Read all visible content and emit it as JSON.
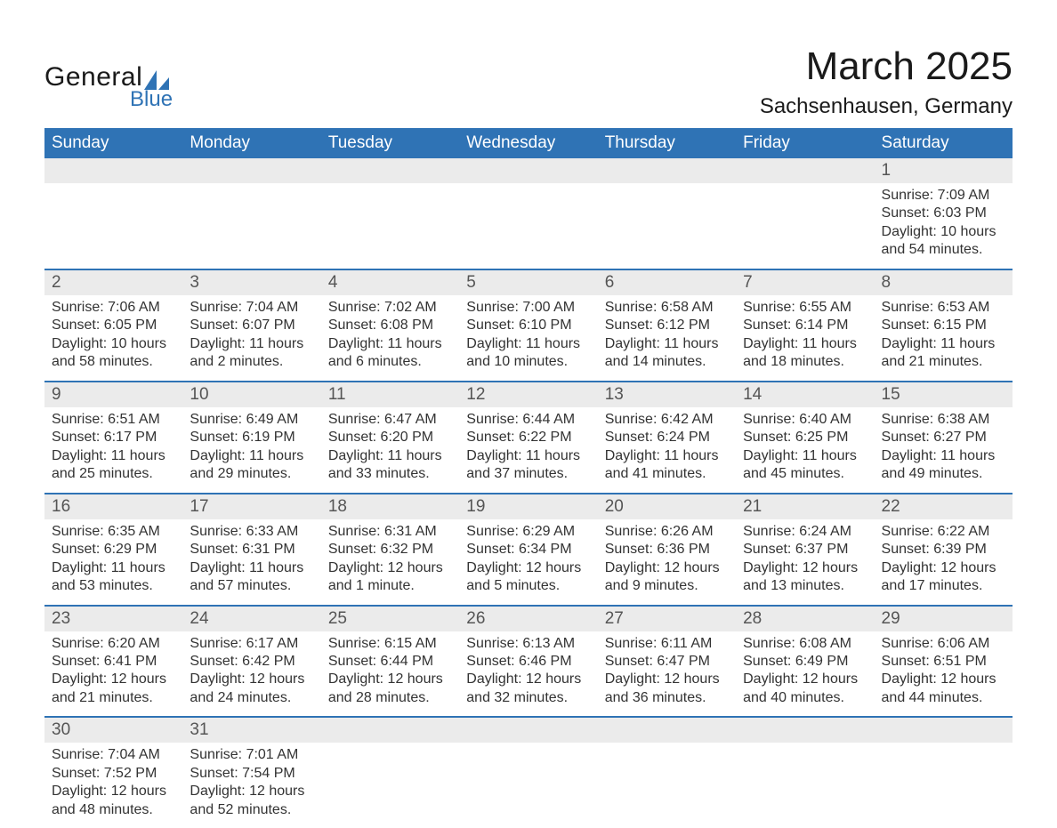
{
  "brand": {
    "general": "General",
    "blue": "Blue"
  },
  "title": "March 2025",
  "location": "Sachsenhausen, Germany",
  "colors": {
    "header_bg": "#2f73b5",
    "header_text": "#ffffff",
    "daynum_bg": "#ebebeb",
    "border": "#2f73b5",
    "text": "#333333",
    "logo_blue": "#2f73b5"
  },
  "weekdays": [
    "Sunday",
    "Monday",
    "Tuesday",
    "Wednesday",
    "Thursday",
    "Friday",
    "Saturday"
  ],
  "labels": {
    "sunrise": "Sunrise:",
    "sunset": "Sunset:",
    "daylight": "Daylight:"
  },
  "weeks": [
    [
      {
        "n": "",
        "empty": true
      },
      {
        "n": "",
        "empty": true
      },
      {
        "n": "",
        "empty": true
      },
      {
        "n": "",
        "empty": true
      },
      {
        "n": "",
        "empty": true
      },
      {
        "n": "",
        "empty": true
      },
      {
        "n": "1",
        "sr": "7:09 AM",
        "ss": "6:03 PM",
        "dl": "10 hours and 54 minutes."
      }
    ],
    [
      {
        "n": "2",
        "sr": "7:06 AM",
        "ss": "6:05 PM",
        "dl": "10 hours and 58 minutes."
      },
      {
        "n": "3",
        "sr": "7:04 AM",
        "ss": "6:07 PM",
        "dl": "11 hours and 2 minutes."
      },
      {
        "n": "4",
        "sr": "7:02 AM",
        "ss": "6:08 PM",
        "dl": "11 hours and 6 minutes."
      },
      {
        "n": "5",
        "sr": "7:00 AM",
        "ss": "6:10 PM",
        "dl": "11 hours and 10 minutes."
      },
      {
        "n": "6",
        "sr": "6:58 AM",
        "ss": "6:12 PM",
        "dl": "11 hours and 14 minutes."
      },
      {
        "n": "7",
        "sr": "6:55 AM",
        "ss": "6:14 PM",
        "dl": "11 hours and 18 minutes."
      },
      {
        "n": "8",
        "sr": "6:53 AM",
        "ss": "6:15 PM",
        "dl": "11 hours and 21 minutes."
      }
    ],
    [
      {
        "n": "9",
        "sr": "6:51 AM",
        "ss": "6:17 PM",
        "dl": "11 hours and 25 minutes."
      },
      {
        "n": "10",
        "sr": "6:49 AM",
        "ss": "6:19 PM",
        "dl": "11 hours and 29 minutes."
      },
      {
        "n": "11",
        "sr": "6:47 AM",
        "ss": "6:20 PM",
        "dl": "11 hours and 33 minutes."
      },
      {
        "n": "12",
        "sr": "6:44 AM",
        "ss": "6:22 PM",
        "dl": "11 hours and 37 minutes."
      },
      {
        "n": "13",
        "sr": "6:42 AM",
        "ss": "6:24 PM",
        "dl": "11 hours and 41 minutes."
      },
      {
        "n": "14",
        "sr": "6:40 AM",
        "ss": "6:25 PM",
        "dl": "11 hours and 45 minutes."
      },
      {
        "n": "15",
        "sr": "6:38 AM",
        "ss": "6:27 PM",
        "dl": "11 hours and 49 minutes."
      }
    ],
    [
      {
        "n": "16",
        "sr": "6:35 AM",
        "ss": "6:29 PM",
        "dl": "11 hours and 53 minutes."
      },
      {
        "n": "17",
        "sr": "6:33 AM",
        "ss": "6:31 PM",
        "dl": "11 hours and 57 minutes."
      },
      {
        "n": "18",
        "sr": "6:31 AM",
        "ss": "6:32 PM",
        "dl": "12 hours and 1 minute."
      },
      {
        "n": "19",
        "sr": "6:29 AM",
        "ss": "6:34 PM",
        "dl": "12 hours and 5 minutes."
      },
      {
        "n": "20",
        "sr": "6:26 AM",
        "ss": "6:36 PM",
        "dl": "12 hours and 9 minutes."
      },
      {
        "n": "21",
        "sr": "6:24 AM",
        "ss": "6:37 PM",
        "dl": "12 hours and 13 minutes."
      },
      {
        "n": "22",
        "sr": "6:22 AM",
        "ss": "6:39 PM",
        "dl": "12 hours and 17 minutes."
      }
    ],
    [
      {
        "n": "23",
        "sr": "6:20 AM",
        "ss": "6:41 PM",
        "dl": "12 hours and 21 minutes."
      },
      {
        "n": "24",
        "sr": "6:17 AM",
        "ss": "6:42 PM",
        "dl": "12 hours and 24 minutes."
      },
      {
        "n": "25",
        "sr": "6:15 AM",
        "ss": "6:44 PM",
        "dl": "12 hours and 28 minutes."
      },
      {
        "n": "26",
        "sr": "6:13 AM",
        "ss": "6:46 PM",
        "dl": "12 hours and 32 minutes."
      },
      {
        "n": "27",
        "sr": "6:11 AM",
        "ss": "6:47 PM",
        "dl": "12 hours and 36 minutes."
      },
      {
        "n": "28",
        "sr": "6:08 AM",
        "ss": "6:49 PM",
        "dl": "12 hours and 40 minutes."
      },
      {
        "n": "29",
        "sr": "6:06 AM",
        "ss": "6:51 PM",
        "dl": "12 hours and 44 minutes."
      }
    ],
    [
      {
        "n": "30",
        "sr": "7:04 AM",
        "ss": "7:52 PM",
        "dl": "12 hours and 48 minutes."
      },
      {
        "n": "31",
        "sr": "7:01 AM",
        "ss": "7:54 PM",
        "dl": "12 hours and 52 minutes."
      },
      {
        "n": "",
        "empty": true
      },
      {
        "n": "",
        "empty": true
      },
      {
        "n": "",
        "empty": true
      },
      {
        "n": "",
        "empty": true
      },
      {
        "n": "",
        "empty": true
      }
    ]
  ]
}
